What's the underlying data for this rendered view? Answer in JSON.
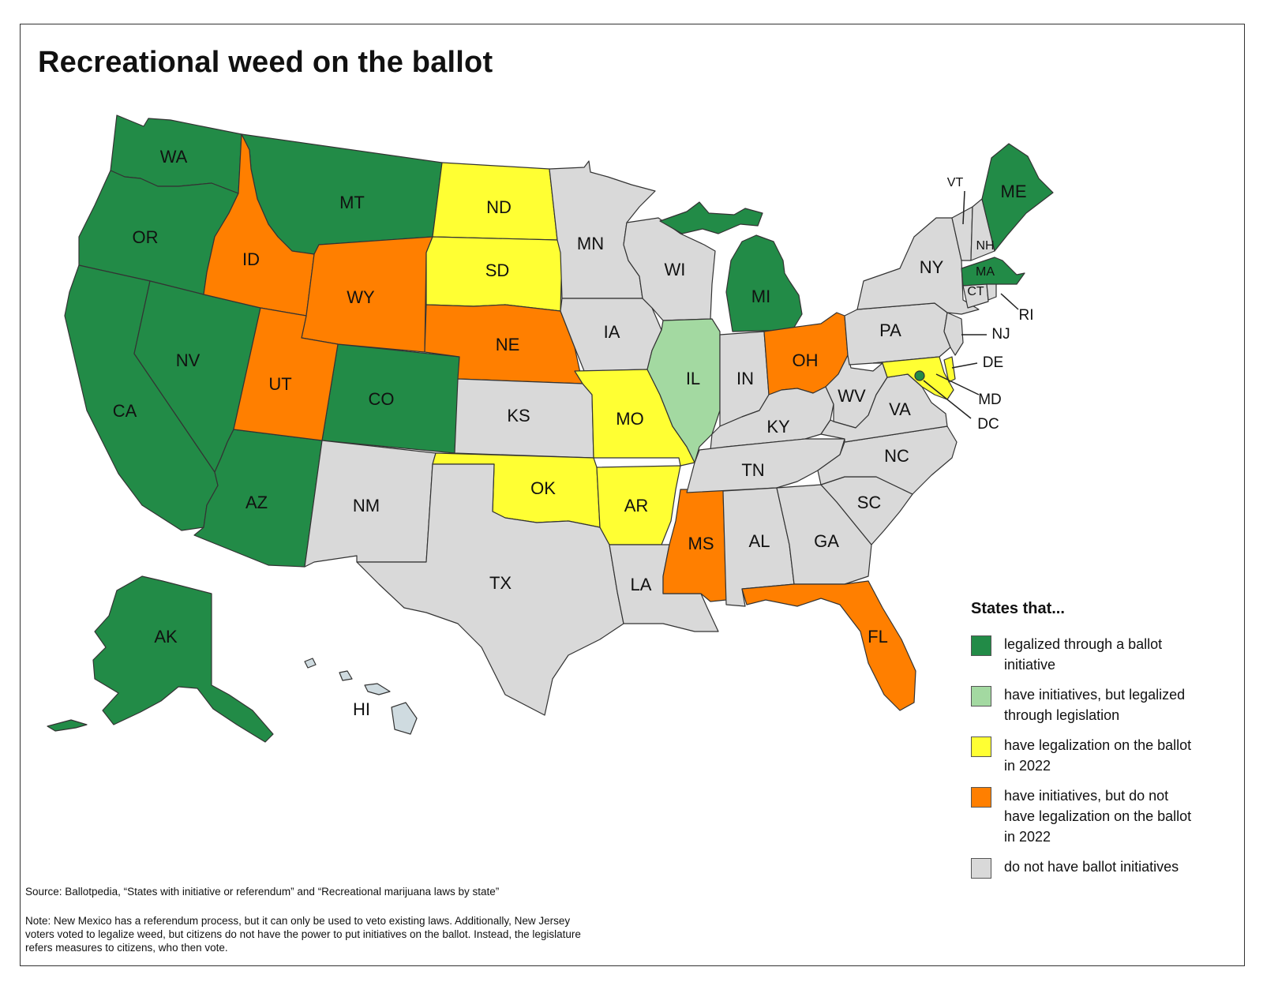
{
  "title": "Recreational weed on the ballot",
  "colors": {
    "ballot_legalized": "#228b47",
    "legislation_legalized": "#a3d9a1",
    "ballot_2022": "#ffff33",
    "initiative_no_2022": "#ff7f00",
    "no_initiative": "#d9d9d9",
    "hawaii": "#cfdbe0"
  },
  "legend": {
    "title": "States that...",
    "items": [
      {
        "color": "#228b47",
        "label": "legalized through a ballot initiative"
      },
      {
        "color": "#a3d9a1",
        "label": "have initiatives, but legalized through legislation"
      },
      {
        "color": "#ffff33",
        "label": "have legalization on the ballot in 2022"
      },
      {
        "color": "#ff7f00",
        "label": "have initiatives, but do not have legalization on the ballot in 2022"
      },
      {
        "color": "#d9d9d9",
        "label": "do not have ballot initiatives"
      }
    ]
  },
  "states": {
    "WA": "WA",
    "OR": "OR",
    "CA": "CA",
    "NV": "NV",
    "ID": "ID",
    "MT": "MT",
    "WY": "WY",
    "UT": "UT",
    "AZ": "AZ",
    "CO": "CO",
    "NM": "NM",
    "ND": "ND",
    "SD": "SD",
    "NE": "NE",
    "KS": "KS",
    "OK": "OK",
    "TX": "TX",
    "MN": "MN",
    "IA": "IA",
    "MO": "MO",
    "AR": "AR",
    "LA": "LA",
    "WI": "WI",
    "IL": "IL",
    "MS": "MS",
    "MI": "MI",
    "IN": "IN",
    "KY": "KY",
    "TN": "TN",
    "AL": "AL",
    "GA": "GA",
    "FL": "FL",
    "OH": "OH",
    "WV": "WV",
    "VA": "VA",
    "NC": "NC",
    "SC": "SC",
    "PA": "PA",
    "NY": "NY",
    "VT": "VT",
    "NH": "NH",
    "ME": "ME",
    "MA": "MA",
    "CT": "CT",
    "RI": "RI",
    "NJ": "NJ",
    "DE": "DE",
    "MD": "MD",
    "DC": "DC",
    "AK": "AK",
    "HI": "HI"
  },
  "source": "Source: Ballotpedia, “States with initiative or referendum” and “Recreational marijuana laws by state”",
  "note": "Note: New Mexico has a referendum process, but it can only be used to veto existing laws. Additionally, New Jersey voters voted to legalize weed, but citizens do not have the power to put initiatives on the ballot. Instead, the legislature refers measures to citizens, who then vote."
}
